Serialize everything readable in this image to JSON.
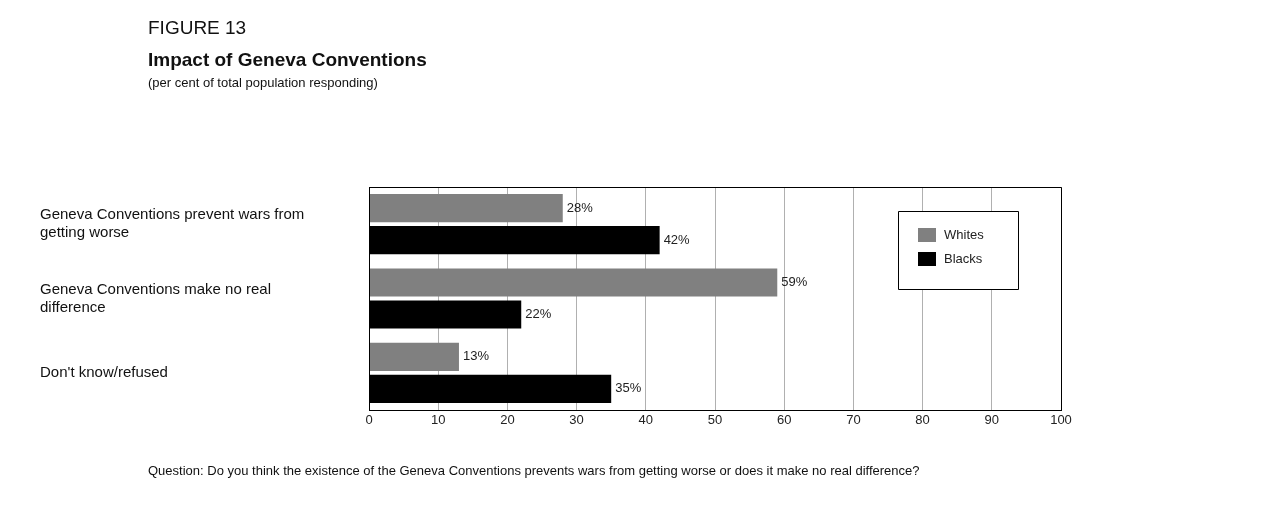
{
  "chart_data": {
    "type": "bar",
    "orientation": "horizontal",
    "title": "Impact of Geneva Conventions",
    "subtitle": "(per cent of total population responding)",
    "annotations": [
      "FIGURE 13",
      "Question: Do you think the existence of the Geneva Conventions prevents wars from getting worse or does it make no real difference?"
    ],
    "categories": [
      "Geneva Conventions prevent wars from getting worse",
      "Geneva Conventions make no real difference",
      "Don't know/refused"
    ],
    "series": [
      {
        "name": "Whites",
        "color": "#808080",
        "values": [
          28,
          59,
          13
        ],
        "value_labels": [
          "28%",
          "59%",
          "13%"
        ]
      },
      {
        "name": "Blacks",
        "color": "#000000",
        "values": [
          42,
          22,
          35
        ],
        "value_labels": [
          "42%",
          "22%",
          "35%"
        ]
      }
    ],
    "xlim": [
      0,
      100
    ],
    "xticks": [
      0,
      10,
      20,
      30,
      40,
      50,
      60,
      70,
      80,
      90,
      100
    ],
    "grid": "x",
    "legend": "top right"
  }
}
